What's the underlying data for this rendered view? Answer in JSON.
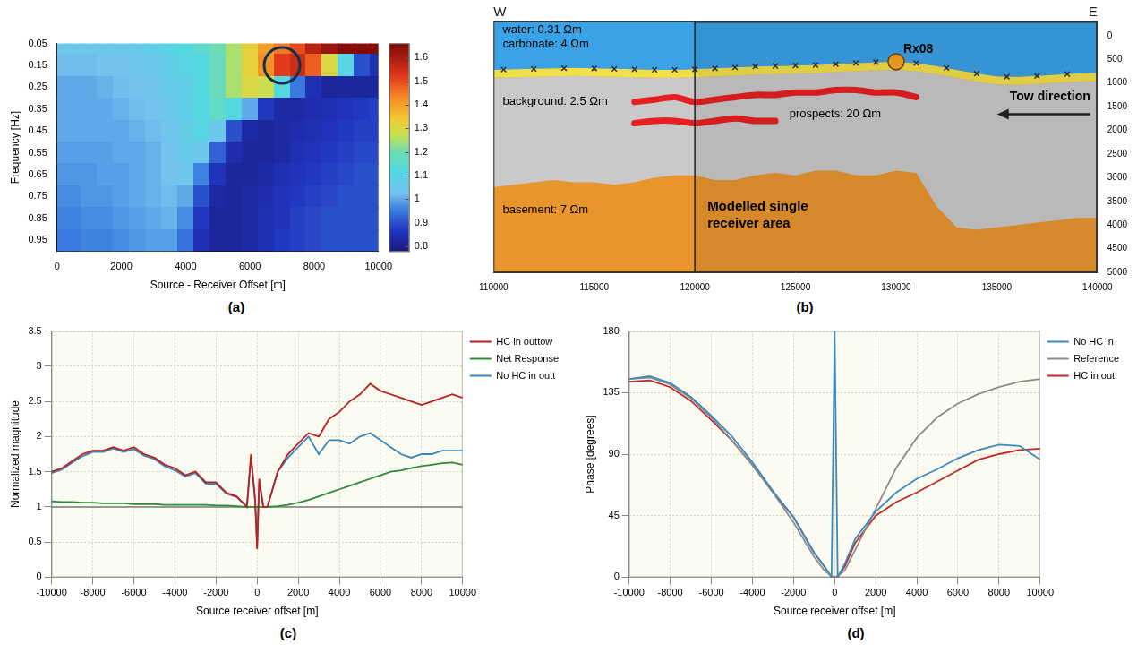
{
  "chart_data": [
    {
      "type": "heatmap",
      "panel_label": "(a)",
      "x_label": "Source - Receiver Offset [m]",
      "y_label": "Frequency [Hz]",
      "x": [
        0,
        500,
        1000,
        1500,
        2000,
        2500,
        3000,
        3500,
        4000,
        4500,
        5000,
        5500,
        6000,
        6500,
        7000,
        7500,
        8000,
        8500,
        9000,
        9500,
        10000
      ],
      "y": [
        0.05,
        0.15,
        0.25,
        0.35,
        0.45,
        0.55,
        0.65,
        0.75,
        0.85,
        0.95
      ],
      "values": [
        [
          1.05,
          1.05,
          1.05,
          1.05,
          1.05,
          1.06,
          1.08,
          1.1,
          1.12,
          1.15,
          1.2,
          1.25,
          1.32,
          1.4,
          1.45,
          1.5,
          1.58,
          1.62,
          1.65,
          1.65,
          1.65
        ],
        [
          1.02,
          1.02,
          1.02,
          1.03,
          1.03,
          1.04,
          1.05,
          1.07,
          1.1,
          1.12,
          1.18,
          1.25,
          1.32,
          1.42,
          1.52,
          1.55,
          1.48,
          1.3,
          1.1,
          0.9,
          0.85
        ],
        [
          1,
          1,
          1,
          1.01,
          1.02,
          1.03,
          1.04,
          1.06,
          1.08,
          1.12,
          1.18,
          1.25,
          1.3,
          1.28,
          1.12,
          0.95,
          0.85,
          0.82,
          0.82,
          0.82,
          0.82
        ],
        [
          1,
          1,
          1,
          1,
          1.01,
          1.02,
          1.03,
          1.05,
          1.08,
          1.12,
          1.16,
          1.12,
          1,
          0.87,
          0.83,
          0.83,
          0.84,
          0.85,
          0.86,
          0.87,
          0.88
        ],
        [
          1,
          1,
          1,
          1,
          1,
          1.01,
          1.02,
          1.04,
          1.07,
          1.1,
          1.05,
          0.9,
          0.83,
          0.82,
          0.83,
          0.84,
          0.85,
          0.86,
          0.87,
          0.88,
          0.88
        ],
        [
          0.99,
          0.99,
          0.99,
          0.99,
          1,
          1,
          1.01,
          1.03,
          1.06,
          1.05,
          0.92,
          0.84,
          0.82,
          0.82,
          0.83,
          0.85,
          0.86,
          0.87,
          0.88,
          0.89,
          0.89
        ],
        [
          0.98,
          0.98,
          0.98,
          0.99,
          0.99,
          1,
          1.01,
          1.03,
          1.04,
          0.96,
          0.86,
          0.82,
          0.82,
          0.83,
          0.85,
          0.86,
          0.87,
          0.88,
          0.89,
          0.9,
          0.9
        ],
        [
          0.97,
          0.97,
          0.98,
          0.98,
          0.99,
          1,
          1.01,
          1.02,
          1,
          0.9,
          0.83,
          0.82,
          0.83,
          0.84,
          0.86,
          0.87,
          0.88,
          0.89,
          0.9,
          0.9,
          0.9
        ],
        [
          0.96,
          0.96,
          0.97,
          0.97,
          0.98,
          0.99,
          1,
          1.01,
          0.97,
          0.87,
          0.82,
          0.82,
          0.83,
          0.85,
          0.86,
          0.88,
          0.89,
          0.9,
          0.9,
          0.9,
          0.9
        ],
        [
          0.95,
          0.95,
          0.96,
          0.96,
          0.97,
          0.98,
          0.99,
          0.99,
          0.94,
          0.85,
          0.82,
          0.82,
          0.83,
          0.85,
          0.87,
          0.88,
          0.89,
          0.9,
          0.9,
          0.9,
          0.9
        ]
      ],
      "xlim": [
        0,
        10000
      ],
      "xticks": [
        0,
        2000,
        4000,
        6000,
        8000,
        10000
      ],
      "ylim": [
        0.05,
        1
      ],
      "yticks": [
        0.05,
        0.15,
        0.25,
        0.35,
        0.45,
        0.55,
        0.65,
        0.75,
        0.85,
        0.95
      ],
      "colorbar": {
        "lim": [
          0.78,
          1.66
        ],
        "ticks": [
          0.8,
          0.9,
          1,
          1.1,
          1.2,
          1.3,
          1.4,
          1.5,
          1.6
        ]
      },
      "highlight": {
        "x": 7000,
        "y": 0.15
      },
      "grid": false
    },
    {
      "type": "section",
      "panel_label": "(b)",
      "compass": [
        "W",
        "E"
      ],
      "x": [
        110000,
        111000,
        112000,
        113000,
        114000,
        115000,
        116000,
        117000,
        118000,
        119000,
        120000,
        121000,
        122000,
        123000,
        124000,
        125000,
        126000,
        127000,
        128000,
        129000,
        130000,
        131000,
        132000,
        133000,
        134000,
        135000,
        136000,
        137000,
        138000,
        139000,
        140000
      ],
      "series": [
        {
          "name": "water: 0.31 Ωm",
          "color": "#3aa2e6",
          "values": [
            720,
            710,
            700,
            690,
            680,
            690,
            700,
            710,
            720,
            720,
            710,
            690,
            670,
            650,
            640,
            630,
            620,
            600,
            580,
            560,
            550,
            580,
            640,
            720,
            800,
            860,
            870,
            850,
            820,
            800,
            790
          ]
        },
        {
          "name": "carbonate: 4 Ωm",
          "color": "#f2e04a",
          "values": [
            890,
            880,
            870,
            860,
            850,
            860,
            870,
            880,
            890,
            890,
            880,
            860,
            840,
            820,
            810,
            800,
            790,
            770,
            750,
            730,
            720,
            750,
            810,
            890,
            970,
            1030,
            1040,
            1020,
            990,
            970,
            960
          ]
        },
        {
          "name": "background: 2.5 Ωm",
          "color": "#c9c9c9",
          "values": [
            3200,
            3150,
            3100,
            3050,
            3100,
            3100,
            3150,
            3100,
            3000,
            2950,
            2950,
            3050,
            3050,
            2950,
            2900,
            2950,
            2850,
            2850,
            2950,
            2950,
            2850,
            2900,
            3600,
            4050,
            4100,
            4050,
            4000,
            3950,
            3900,
            3850,
            3850
          ]
        },
        {
          "name": "basement: 7 Ωm",
          "color": "#e8952e"
        },
        {
          "name": "prospects: 20 Ωm",
          "color": "#e62020",
          "bands": [
            [
              null,
              null,
              null,
              null,
              null,
              null,
              null,
              1400,
              1350,
              1300,
              1400,
              1350,
              1300,
              1250,
              1250,
              1200,
              1200,
              1150,
              1150,
              1200,
              1200,
              1300,
              null,
              null,
              null,
              null,
              null,
              null,
              null,
              null,
              null
            ],
            [
              null,
              null,
              null,
              null,
              null,
              null,
              null,
              1850,
              1800,
              1800,
              1850,
              1800,
              1750,
              1800,
              1800,
              null,
              null,
              null,
              null,
              null,
              null,
              null,
              null,
              null,
              null,
              null,
              null,
              null,
              null,
              null,
              null
            ]
          ]
        }
      ],
      "receivers": {
        "marker": "x",
        "x": [
          110500,
          112000,
          113500,
          115000,
          116000,
          117000,
          118000,
          119000,
          120000,
          121000,
          122000,
          123000,
          124000,
          125000,
          126000,
          127000,
          128000,
          129000,
          131000,
          132500,
          134000,
          135500,
          137000,
          138500
        ],
        "y": [
          715,
          700,
          685,
          690,
          700,
          710,
          720,
          720,
          710,
          690,
          670,
          650,
          640,
          630,
          620,
          600,
          580,
          560,
          580,
          680,
          800,
          865,
          850,
          810
        ]
      },
      "receiver": {
        "name": "Rx08",
        "x": 130000,
        "y": 550,
        "color": "#f5a623"
      },
      "box": {
        "label": "Modelled single receiver area",
        "x": [
          120000,
          140000
        ]
      },
      "arrow_label": "Tow direction",
      "xlim": [
        110000,
        140000
      ],
      "xticks": [
        110000,
        115000,
        120000,
        125000,
        130000,
        135000,
        140000
      ],
      "ylim": [
        -300,
        5000
      ],
      "yticks": [
        0,
        500,
        1000,
        1500,
        2000,
        2500,
        3000,
        3500,
        4000,
        4500,
        5000
      ],
      "grid": false
    },
    {
      "type": "line",
      "panel_label": "(c)",
      "x_label": "Source receiver offset [m]",
      "y_label": "Normalized magnitude",
      "x": [
        -10000,
        -9500,
        -9000,
        -8500,
        -8000,
        -7500,
        -7000,
        -6500,
        -6000,
        -5500,
        -5000,
        -4500,
        -4000,
        -3500,
        -3000,
        -2500,
        -2000,
        -1500,
        -1000,
        -500,
        -300,
        -100,
        0,
        100,
        300,
        500,
        1000,
        1500,
        2000,
        2500,
        3000,
        3500,
        4000,
        4500,
        5000,
        5500,
        6000,
        6500,
        7000,
        7500,
        8000,
        8500,
        9000,
        9500,
        10000
      ],
      "series": [
        {
          "name": "No HC in outt",
          "color": "#3a86b8",
          "values": [
            1.48,
            1.53,
            1.63,
            1.72,
            1.78,
            1.78,
            1.83,
            1.78,
            1.82,
            1.73,
            1.68,
            1.58,
            1.52,
            1.43,
            1.48,
            1.33,
            1.33,
            1.19,
            1.14,
            1,
            1.7,
            1.1,
            0.45,
            1.35,
            1,
            1,
            1.5,
            1.7,
            1.85,
            2,
            1.75,
            1.95,
            1.95,
            1.9,
            2,
            2.05,
            1.95,
            1.85,
            1.75,
            1.7,
            1.75,
            1.75,
            1.8,
            1.8,
            1.8
          ]
        },
        {
          "name": "Net Response",
          "color": "#2e8b3a",
          "values": [
            1.08,
            1.07,
            1.07,
            1.06,
            1.06,
            1.05,
            1.05,
            1.05,
            1.04,
            1.04,
            1.04,
            1.03,
            1.03,
            1.03,
            1.03,
            1.03,
            1.02,
            1.02,
            1.01,
            1,
            1,
            1,
            1,
            1,
            1,
            1,
            1.01,
            1.03,
            1.06,
            1.1,
            1.15,
            1.2,
            1.25,
            1.3,
            1.35,
            1.4,
            1.45,
            1.5,
            1.52,
            1.55,
            1.58,
            1.6,
            1.62,
            1.63,
            1.6
          ]
        },
        {
          "name": "HC in outtow",
          "color": "#b82020",
          "values": [
            1.5,
            1.55,
            1.65,
            1.75,
            1.8,
            1.8,
            1.85,
            1.8,
            1.85,
            1.75,
            1.7,
            1.6,
            1.55,
            1.45,
            1.5,
            1.35,
            1.35,
            1.2,
            1.15,
            1,
            1.75,
            1.1,
            0.4,
            1.4,
            1,
            1,
            1.5,
            1.75,
            1.9,
            2.05,
            2,
            2.25,
            2.35,
            2.5,
            2.6,
            2.75,
            2.65,
            2.6,
            2.55,
            2.5,
            2.45,
            2.5,
            2.55,
            2.6,
            2.55
          ]
        }
      ],
      "reference_line": 1,
      "xlim": [
        -10000,
        10000
      ],
      "xticks": [
        -10000,
        -8000,
        -6000,
        -4000,
        -2000,
        0,
        2000,
        4000,
        6000,
        8000,
        10000
      ],
      "ylim": [
        0,
        3.5
      ],
      "yticks": [
        0,
        0.5,
        1,
        1.5,
        2,
        2.5,
        3,
        3.5
      ],
      "grid": true,
      "legend": "right"
    },
    {
      "type": "line",
      "panel_label": "(d)",
      "x_label": "Source receiver offset [m]",
      "y_label": "Phase [degrees]",
      "x": [
        -10000,
        -9000,
        -8000,
        -7000,
        -6000,
        -5000,
        -4000,
        -3000,
        -2000,
        -1000,
        -500,
        -150,
        0,
        150,
        500,
        1000,
        2000,
        3000,
        4000,
        5000,
        6000,
        7000,
        8000,
        9000,
        10000
      ],
      "series": [
        {
          "name": "HC in out",
          "color": "#c0282a",
          "values": [
            143,
            144,
            139,
            129,
            115,
            100,
            82,
            62,
            44,
            18,
            8,
            0,
            0,
            0,
            8,
            25,
            45,
            55,
            62,
            70,
            78,
            86,
            90,
            93,
            94
          ]
        },
        {
          "name": "Reference",
          "color": "#8c8c8c",
          "values": [
            145,
            146,
            141,
            131,
            117,
            100,
            82,
            62,
            40,
            15,
            5,
            1,
            0,
            1,
            5,
            20,
            50,
            80,
            102,
            117,
            127,
            134,
            139,
            143,
            145
          ]
        },
        {
          "name": "No HC in",
          "color": "#3a8ac0",
          "values": [
            145,
            147,
            142,
            132,
            118,
            103,
            84,
            63,
            44,
            18,
            8,
            0,
            180,
            0,
            10,
            28,
            48,
            62,
            72,
            79,
            87,
            93,
            97,
            96,
            86
          ]
        }
      ],
      "xlim": [
        -10000,
        10000
      ],
      "xticks": [
        -10000,
        -8000,
        -6000,
        -4000,
        -2000,
        0,
        2000,
        4000,
        6000,
        8000,
        10000
      ],
      "ylim": [
        0,
        180
      ],
      "yticks": [
        0,
        45,
        90,
        135,
        180
      ],
      "grid": true,
      "legend": "right"
    }
  ]
}
